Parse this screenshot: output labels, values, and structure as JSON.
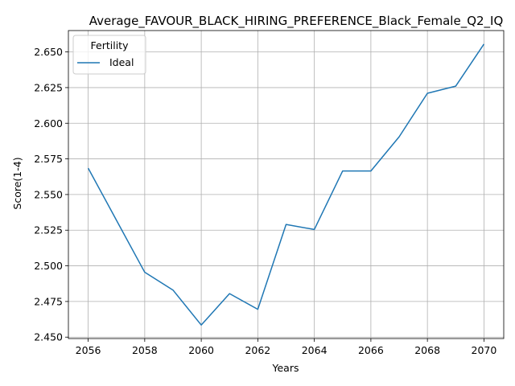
{
  "chart_data": {
    "type": "line",
    "title": "Average_FAVOUR_BLACK_HIRING_PREFERENCE_Black_Female_Q2_IQ",
    "xlabel": "Years",
    "ylabel": "Score(1-4)",
    "x": [
      2056,
      2057,
      2058,
      2059,
      2060,
      2061,
      2062,
      2063,
      2064,
      2065,
      2066,
      2067,
      2068,
      2069,
      2070
    ],
    "series": [
      {
        "name": "Ideal",
        "color": "#1f77b4",
        "values": [
          2.5685,
          2.532,
          2.4955,
          2.483,
          2.4585,
          2.4805,
          2.4695,
          2.529,
          2.5255,
          2.5665,
          2.5665,
          2.5905,
          2.621,
          2.626,
          2.6555
        ]
      }
    ],
    "xlim": [
      2055.3,
      2070.7
    ],
    "ylim": [
      2.449,
      2.665
    ],
    "x_ticks": [
      2056,
      2058,
      2060,
      2062,
      2064,
      2066,
      2068,
      2070
    ],
    "x_tick_labels": [
      "2056",
      "2058",
      "2060",
      "2062",
      "2064",
      "2066",
      "2068",
      "2070"
    ],
    "y_ticks": [
      2.45,
      2.475,
      2.5,
      2.525,
      2.55,
      2.575,
      2.6,
      2.625,
      2.65
    ],
    "y_tick_labels": [
      "2.450",
      "2.475",
      "2.500",
      "2.525",
      "2.550",
      "2.575",
      "2.600",
      "2.625",
      "2.650"
    ],
    "grid": true,
    "legend": {
      "title": "Fertility",
      "placement": "top-left"
    }
  }
}
